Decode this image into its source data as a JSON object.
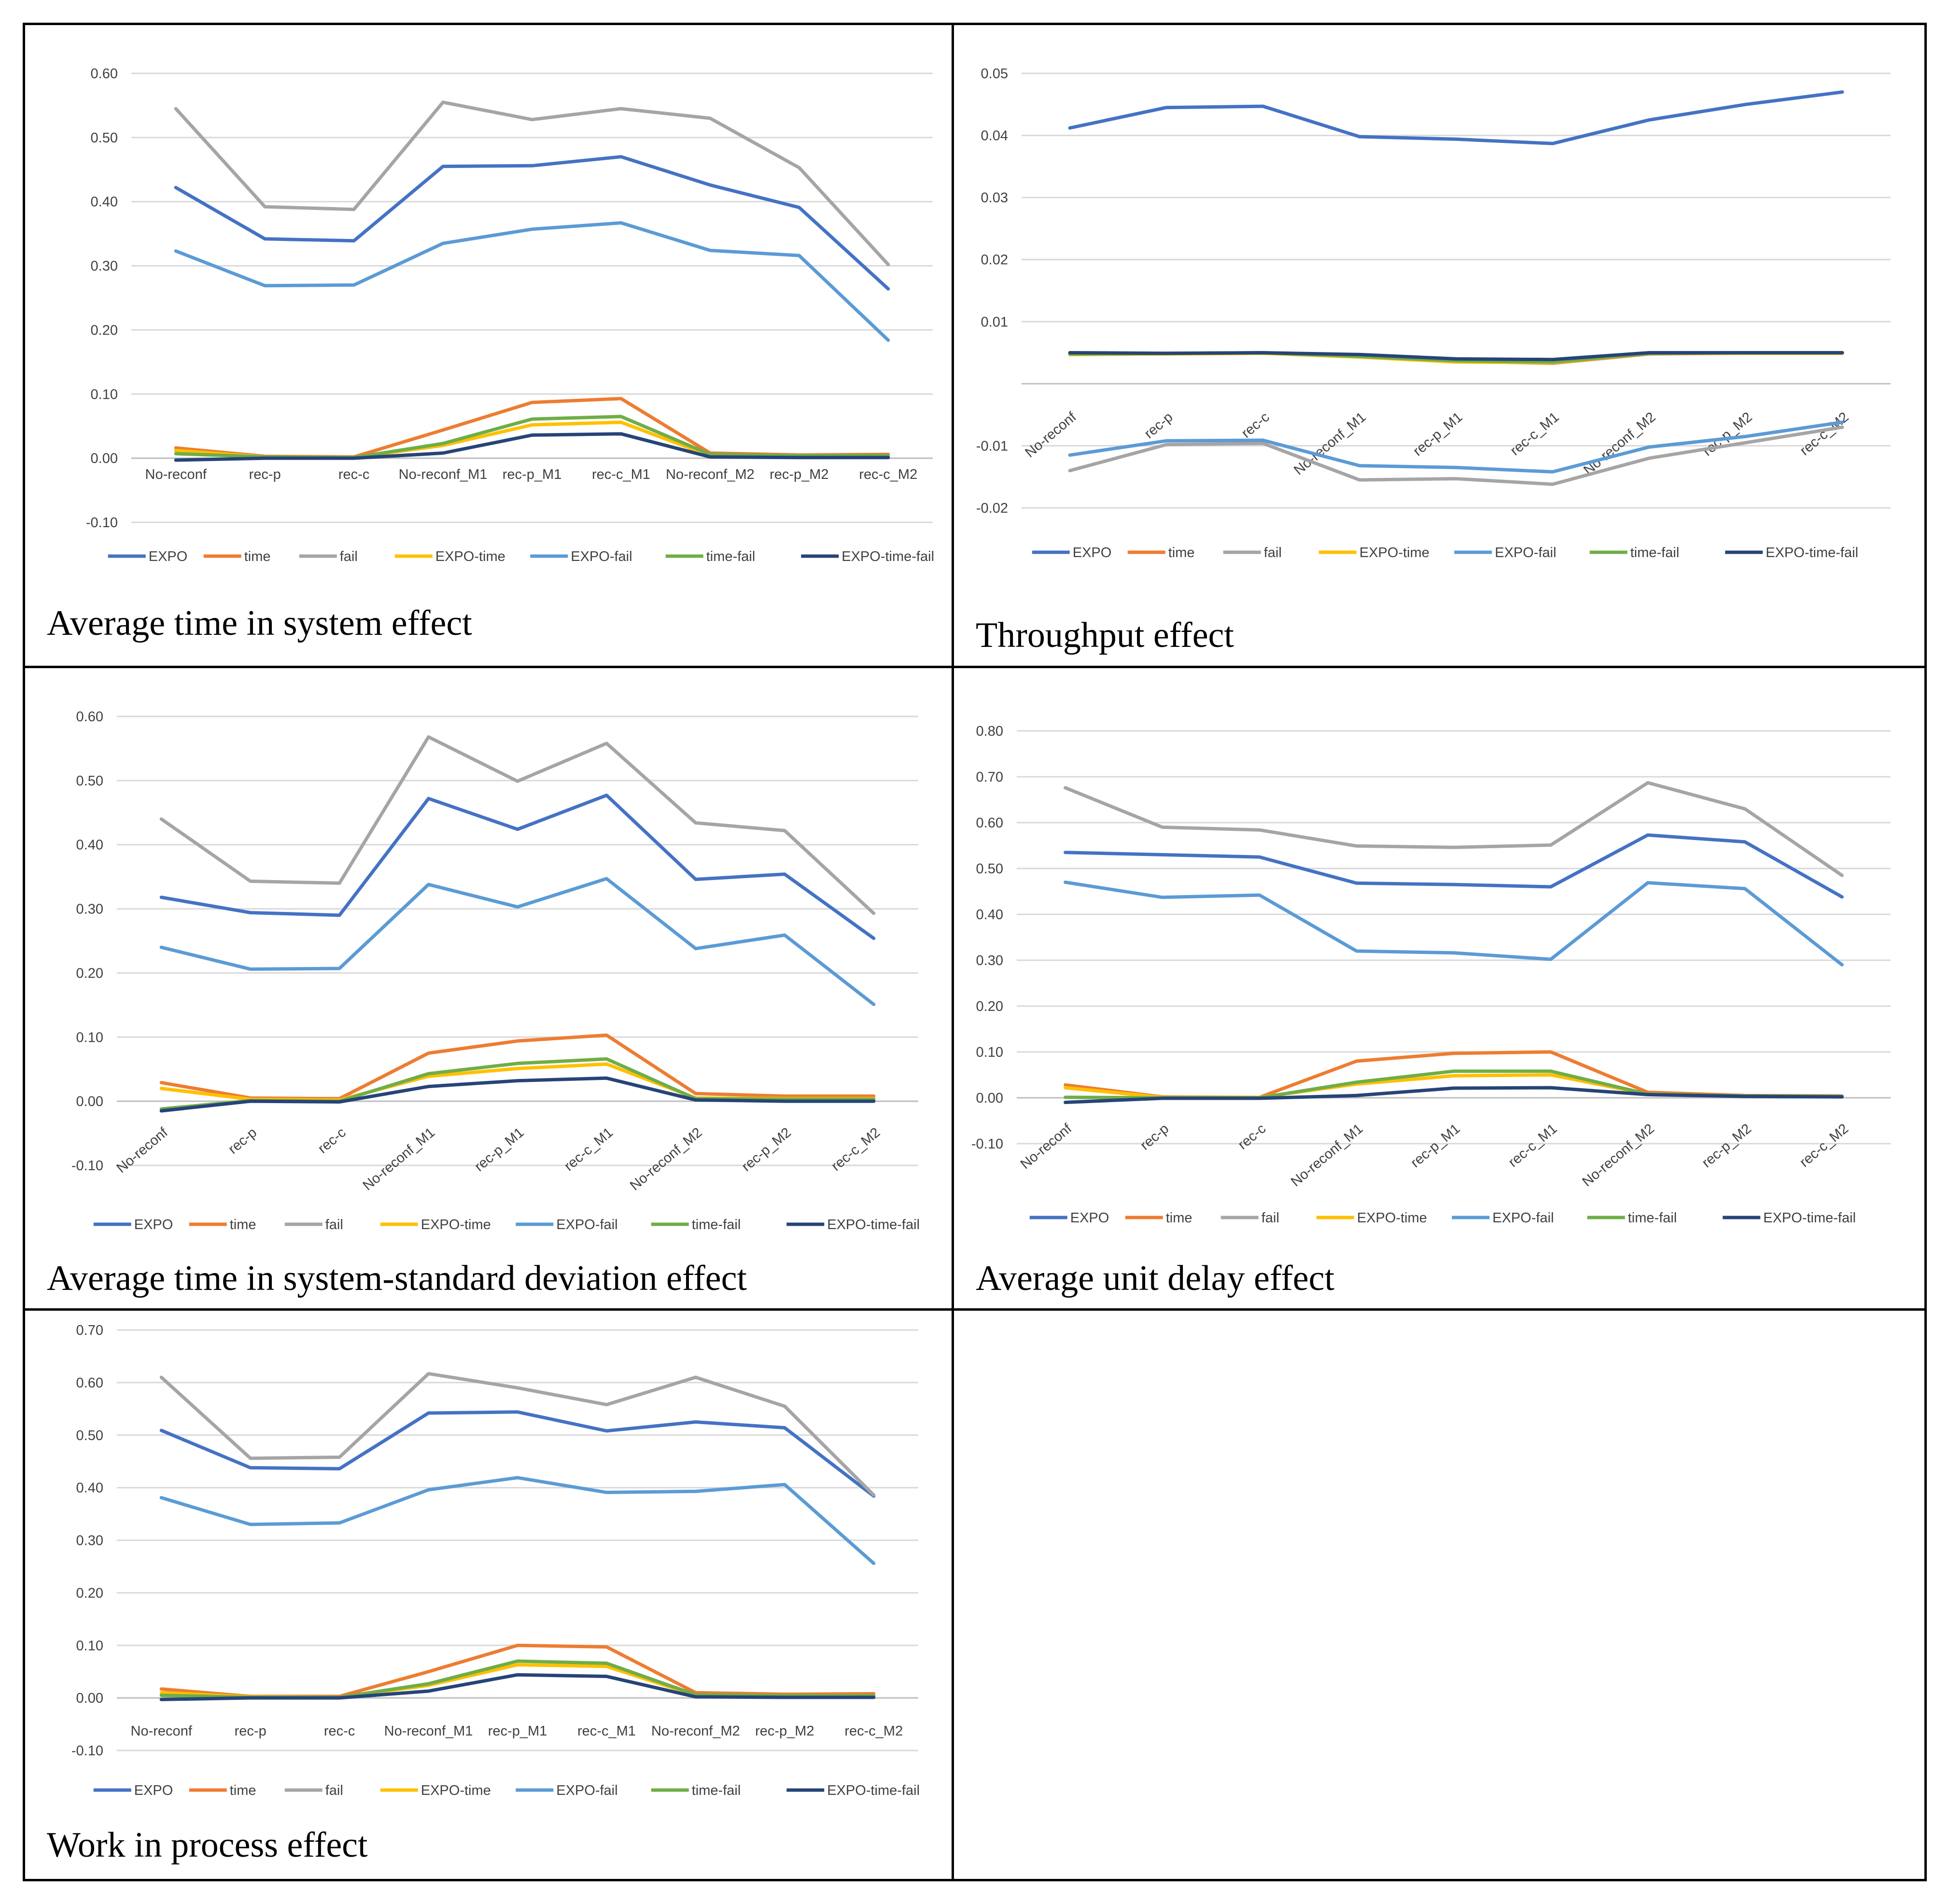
{
  "series_styles": [
    {
      "name": "EXPO",
      "color": "#4472c4"
    },
    {
      "name": "time",
      "color": "#ed7d31"
    },
    {
      "name": "fail",
      "color": "#a5a5a5"
    },
    {
      "name": "EXPO-time",
      "color": "#ffc000"
    },
    {
      "name": "EXPO-fail",
      "color": "#5b9bd5"
    },
    {
      "name": "time-fail",
      "color": "#70ad47"
    },
    {
      "name": "EXPO-time-fail",
      "color": "#264478"
    }
  ],
  "chart_data": [
    {
      "type": "line",
      "caption": "Average time in system effect",
      "categories": [
        "No-reconf",
        "rec-p",
        "rec-c",
        "No-reconf_M1",
        "rec-p_M1",
        "rec-c_M1",
        "No-reconf_M2",
        "rec-p_M2",
        "rec-c_M2"
      ],
      "yticks": [
        "0.60",
        "0.50",
        "0.40",
        "0.30",
        "0.20",
        "0.10",
        "0.00",
        "-0.10"
      ],
      "ylim": [
        -0.1,
        0.6
      ],
      "xlabel": "",
      "ylabel": "",
      "grid": true,
      "legend_position": "bottom",
      "rotated_labels": false,
      "series": [
        {
          "name": "EXPO",
          "values": [
            0.422,
            0.342,
            0.339,
            0.455,
            0.456,
            0.47,
            0.426,
            0.391,
            0.264
          ]
        },
        {
          "name": "time",
          "values": [
            0.016,
            0.003,
            0.002,
            0.044,
            0.087,
            0.093,
            0.008,
            0.005,
            0.006
          ]
        },
        {
          "name": "fail",
          "values": [
            0.545,
            0.392,
            0.388,
            0.555,
            0.528,
            0.545,
            0.53,
            0.453,
            0.302
          ]
        },
        {
          "name": "EXPO-time",
          "values": [
            0.012,
            0.002,
            0.001,
            0.02,
            0.052,
            0.056,
            0.004,
            0.003,
            0.003
          ]
        },
        {
          "name": "EXPO-fail",
          "values": [
            0.323,
            0.269,
            0.27,
            0.335,
            0.357,
            0.367,
            0.324,
            0.316,
            0.184
          ]
        },
        {
          "name": "time-fail",
          "values": [
            0.007,
            0.002,
            0.001,
            0.023,
            0.061,
            0.065,
            0.006,
            0.004,
            0.004
          ]
        },
        {
          "name": "EXPO-time-fail",
          "values": [
            -0.003,
            0.0,
            0.0,
            0.008,
            0.036,
            0.038,
            0.002,
            0.001,
            0.001
          ]
        }
      ]
    },
    {
      "type": "line",
      "caption": "Throughput effect",
      "categories": [
        "No-reconf",
        "rec-p",
        "rec-c",
        "No-reconf_M1",
        "rec-p_M1",
        "rec-c_M1",
        "No-reconf_M2",
        "rec-p_M2",
        "rec-c_M2"
      ],
      "yticks": [
        "0.05",
        "0.04",
        "0.03",
        "0.02",
        "0.01",
        "-0.01",
        "-0.02"
      ],
      "ylim": [
        -0.02,
        0.05
      ],
      "xlabel": "",
      "ylabel": "",
      "grid": true,
      "legend_position": "bottom",
      "rotated_labels": true,
      "series": [
        {
          "name": "EXPO",
          "values": [
            0.0412,
            0.0445,
            0.0447,
            0.0398,
            0.0394,
            0.0387,
            0.0425,
            0.045,
            0.047
          ]
        },
        {
          "name": "time",
          "values": [
            0.0047,
            0.0048,
            0.0049,
            0.0045,
            0.0036,
            0.0033,
            0.0048,
            0.0049,
            0.0049
          ]
        },
        {
          "name": "fail",
          "values": [
            -0.014,
            -0.0098,
            -0.0096,
            -0.0155,
            -0.0153,
            -0.0162,
            -0.012,
            -0.0095,
            -0.007
          ]
        },
        {
          "name": "EXPO-time",
          "values": [
            0.0047,
            0.0048,
            0.0049,
            0.0043,
            0.0035,
            0.0034,
            0.0049,
            0.0049,
            0.0049
          ]
        },
        {
          "name": "EXPO-fail",
          "values": [
            -0.0115,
            -0.0092,
            -0.0091,
            -0.0132,
            -0.0135,
            -0.0142,
            -0.0102,
            -0.0085,
            -0.0062
          ]
        },
        {
          "name": "time-fail",
          "values": [
            0.0048,
            0.0049,
            0.005,
            0.0044,
            0.0037,
            0.0035,
            0.0049,
            0.005,
            0.005
          ]
        },
        {
          "name": "EXPO-time-fail",
          "values": [
            0.005,
            0.0049,
            0.005,
            0.0047,
            0.004,
            0.0039,
            0.005,
            0.005,
            0.005
          ]
        }
      ]
    },
    {
      "type": "line",
      "caption": "Average time in system-standard deviation effect",
      "categories": [
        "No-reconf",
        "rec-p",
        "rec-c",
        "No-reconf_M1",
        "rec-p_M1",
        "rec-c_M1",
        "No-reconf_M2",
        "rec-p_M2",
        "rec-c_M2"
      ],
      "yticks": [
        "0.60",
        "0.50",
        "0.40",
        "0.30",
        "0.20",
        "0.10",
        "0.00",
        "-0.10"
      ],
      "ylim": [
        -0.1,
        0.6
      ],
      "xlabel": "",
      "ylabel": "",
      "grid": true,
      "legend_position": "bottom",
      "rotated_labels": true,
      "series": [
        {
          "name": "EXPO",
          "values": [
            0.318,
            0.294,
            0.29,
            0.472,
            0.424,
            0.477,
            0.346,
            0.354,
            0.254
          ]
        },
        {
          "name": "time",
          "values": [
            0.029,
            0.005,
            0.004,
            0.075,
            0.094,
            0.103,
            0.012,
            0.008,
            0.008
          ]
        },
        {
          "name": "fail",
          "values": [
            0.44,
            0.343,
            0.34,
            0.568,
            0.499,
            0.558,
            0.434,
            0.422,
            0.293
          ]
        },
        {
          "name": "EXPO-time",
          "values": [
            0.02,
            0.003,
            0.002,
            0.039,
            0.051,
            0.058,
            0.005,
            0.004,
            0.004
          ]
        },
        {
          "name": "EXPO-fail",
          "values": [
            0.24,
            0.206,
            0.207,
            0.338,
            0.303,
            0.347,
            0.238,
            0.259,
            0.151
          ]
        },
        {
          "name": "time-fail",
          "values": [
            -0.012,
            0.001,
            0.0,
            0.043,
            0.059,
            0.066,
            0.004,
            0.003,
            0.003
          ]
        },
        {
          "name": "EXPO-time-fail",
          "values": [
            -0.015,
            0.0,
            -0.001,
            0.023,
            0.032,
            0.036,
            0.002,
            0.0,
            0.0
          ]
        }
      ]
    },
    {
      "type": "line",
      "caption": "Average unit delay effect",
      "categories": [
        "No-reconf",
        "rec-p",
        "rec-c",
        "No-reconf_M1",
        "rec-p_M1",
        "rec-c_M1",
        "No-reconf_M2",
        "rec-p_M2",
        "rec-c_M2"
      ],
      "yticks": [
        "0.80",
        "0.70",
        "0.60",
        "0.50",
        "0.40",
        "0.30",
        "0.20",
        "0.10",
        "0.00",
        "-0.10"
      ],
      "ylim": [
        -0.1,
        0.8
      ],
      "xlabel": "",
      "ylabel": "",
      "grid": true,
      "legend_position": "bottom",
      "rotated_labels": true,
      "series": [
        {
          "name": "EXPO",
          "values": [
            0.535,
            0.53,
            0.525,
            0.468,
            0.465,
            0.46,
            0.573,
            0.558,
            0.438
          ]
        },
        {
          "name": "time",
          "values": [
            0.028,
            0.002,
            0.001,
            0.08,
            0.097,
            0.1,
            0.012,
            0.005,
            0.004
          ]
        },
        {
          "name": "fail",
          "values": [
            0.676,
            0.59,
            0.584,
            0.549,
            0.546,
            0.551,
            0.687,
            0.63,
            0.485
          ]
        },
        {
          "name": "EXPO-time",
          "values": [
            0.022,
            0.001,
            0.001,
            0.03,
            0.048,
            0.05,
            0.008,
            0.004,
            0.003
          ]
        },
        {
          "name": "EXPO-fail",
          "values": [
            0.47,
            0.437,
            0.442,
            0.32,
            0.316,
            0.302,
            0.469,
            0.456,
            0.29
          ]
        },
        {
          "name": "time-fail",
          "values": [
            0.001,
            0.0,
            0.0,
            0.034,
            0.058,
            0.058,
            0.008,
            0.004,
            0.003
          ]
        },
        {
          "name": "EXPO-time-fail",
          "values": [
            -0.01,
            -0.001,
            -0.001,
            0.005,
            0.021,
            0.022,
            0.007,
            0.003,
            0.002
          ]
        }
      ]
    },
    {
      "type": "line",
      "caption": "Work in process effect",
      "categories": [
        "No-reconf",
        "rec-p",
        "rec-c",
        "No-reconf_M1",
        "rec-p_M1",
        "rec-c_M1",
        "No-reconf_M2",
        "rec-p_M2",
        "rec-c_M2"
      ],
      "yticks": [
        "0.70",
        "0.60",
        "0.50",
        "0.40",
        "0.30",
        "0.20",
        "0.10",
        "0.00",
        "-0.10"
      ],
      "ylim": [
        -0.1,
        0.7
      ],
      "xlabel": "",
      "ylabel": "",
      "grid": true,
      "legend_position": "bottom",
      "rotated_labels": false,
      "series": [
        {
          "name": "EXPO",
          "values": [
            0.509,
            0.438,
            0.436,
            0.542,
            0.544,
            0.508,
            0.525,
            0.514,
            0.384
          ]
        },
        {
          "name": "time",
          "values": [
            0.017,
            0.003,
            0.003,
            0.05,
            0.1,
            0.097,
            0.01,
            0.007,
            0.008
          ]
        },
        {
          "name": "fail",
          "values": [
            0.61,
            0.456,
            0.458,
            0.617,
            0.59,
            0.558,
            0.61,
            0.555,
            0.386
          ]
        },
        {
          "name": "EXPO-time",
          "values": [
            0.01,
            0.002,
            0.001,
            0.024,
            0.063,
            0.06,
            0.005,
            0.004,
            0.004
          ]
        },
        {
          "name": "EXPO-fail",
          "values": [
            0.381,
            0.33,
            0.333,
            0.396,
            0.419,
            0.391,
            0.393,
            0.406,
            0.256
          ]
        },
        {
          "name": "time-fail",
          "values": [
            0.005,
            0.001,
            0.001,
            0.027,
            0.07,
            0.066,
            0.006,
            0.004,
            0.004
          ]
        },
        {
          "name": "EXPO-time-fail",
          "values": [
            -0.003,
            0.0,
            0.0,
            0.013,
            0.044,
            0.041,
            0.002,
            0.001,
            0.001
          ]
        }
      ]
    }
  ]
}
